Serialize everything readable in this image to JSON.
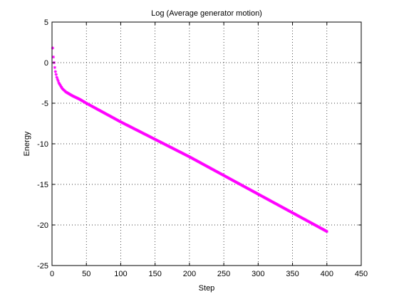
{
  "chart_data": {
    "type": "scatter",
    "title": "Log (Average generator motion)",
    "xlabel": "Step",
    "ylabel": "Energy",
    "xlim": [
      0,
      450
    ],
    "ylim": [
      -25,
      5
    ],
    "xticks": [
      0,
      50,
      100,
      150,
      200,
      250,
      300,
      350,
      400,
      450
    ],
    "yticks": [
      -25,
      -20,
      -15,
      -10,
      -5,
      0,
      5
    ],
    "grid": true,
    "marker": "*",
    "series": [
      {
        "color": "#ff00ff",
        "x_start": 1,
        "x_end": 400,
        "x_step": 1,
        "keypoints": [
          [
            1,
            1.8
          ],
          [
            2,
            0.7
          ],
          [
            3,
            0.0
          ],
          [
            4,
            -0.6
          ],
          [
            5,
            -1.1
          ],
          [
            7,
            -1.8
          ],
          [
            10,
            -2.5
          ],
          [
            15,
            -3.2
          ],
          [
            20,
            -3.6
          ],
          [
            30,
            -4.1
          ],
          [
            40,
            -4.5
          ],
          [
            50,
            -5.0
          ],
          [
            100,
            -7.3
          ],
          [
            150,
            -9.45
          ],
          [
            200,
            -11.6
          ],
          [
            250,
            -13.9
          ],
          [
            300,
            -16.2
          ],
          [
            350,
            -18.5
          ],
          [
            400,
            -20.8
          ]
        ]
      }
    ]
  }
}
